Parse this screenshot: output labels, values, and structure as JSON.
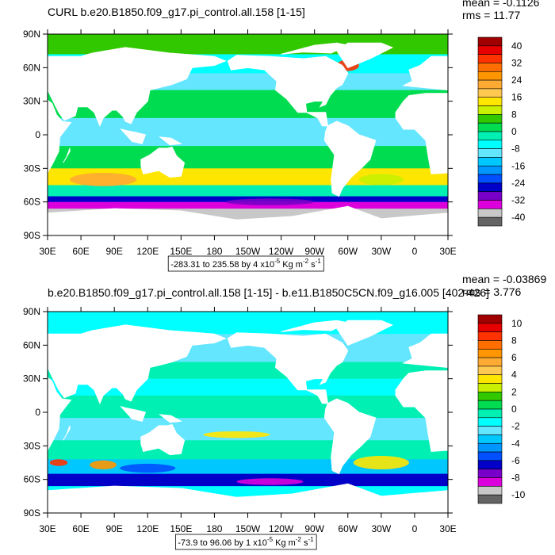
{
  "panels": [
    {
      "title": "CURL b.e20.B1850.f09_g17.pi_control.all.158 [1-15]",
      "mean": "mean = -0.1126",
      "rms": "rms = 11.77",
      "colorbar_labels": [
        40,
        32,
        24,
        16,
        8,
        0,
        -8,
        -16,
        -24,
        -32,
        -40
      ],
      "info": [
        "-283.31 to 235.58 by 4 x10",
        "-5",
        " Kg m",
        "-2",
        " s",
        "-1"
      ]
    },
    {
      "title": "b.e20.B1850.f09_g17.pi_control.all.158 [1-15] - b.e11.B1850C5CN.f09_g16.005 [402-426]",
      "mean": "mean = -0.03869",
      "rms": "rms = 3.776",
      "colorbar_labels": [
        10,
        8,
        6,
        4,
        2,
        0,
        -2,
        -4,
        -6,
        -8,
        -10
      ],
      "info": [
        "-73.9 to 96.06 by 1 x10",
        "-5",
        " Kg m",
        "-2",
        " s",
        "-1"
      ]
    }
  ],
  "lat_labels": [
    "90N",
    "60N",
    "30N",
    "0",
    "30S",
    "60S",
    "90S"
  ],
  "lon_labels": [
    "30E",
    "60E",
    "90E",
    "120E",
    "150E",
    "180",
    "150W",
    "120W",
    "90W",
    "60W",
    "30W",
    "0",
    "30E"
  ],
  "colors": [
    "#a00000",
    "#e60000",
    "#ff3200",
    "#ff6e00",
    "#ff9600",
    "#ffaa32",
    "#ffc850",
    "#ffe600",
    "#c8f000",
    "#32c800",
    "#00dc50",
    "#00f0b4",
    "#00ffff",
    "#64e6ff",
    "#00c8ff",
    "#0096ff",
    "#0050ff",
    "#0000c8",
    "#7800c8",
    "#dc00dc",
    "#c8c8c8",
    "#646464"
  ]
}
